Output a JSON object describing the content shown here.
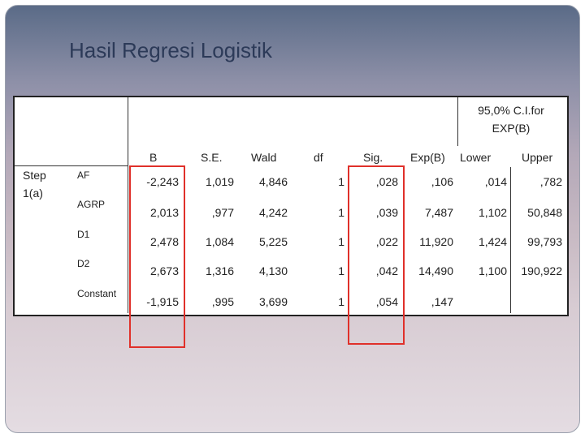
{
  "slide": {
    "title": "Hasil Regresi Logistik"
  },
  "table": {
    "group_header": "95,0% C.I.for EXP(B)",
    "group_header_line1": "95,0% C.I.for",
    "group_header_line2": "EXP(B)",
    "columns": [
      "B",
      "S.E.",
      "Wald",
      "df",
      "Sig.",
      "Exp(B)",
      "Lower",
      "Upper"
    ],
    "step_label_line1": "Step",
    "step_label_line2": "1(a)",
    "rows": [
      {
        "label": "AF",
        "B": "-2,243",
        "SE": "1,019",
        "Wald": "4,846",
        "df": "1",
        "Sig": ",028",
        "ExpB": ",106",
        "Lower": ",014",
        "Upper": ",782"
      },
      {
        "label": "AGRP",
        "B": "2,013",
        "SE": ",977",
        "Wald": "4,242",
        "df": "1",
        "Sig": ",039",
        "ExpB": "7,487",
        "Lower": "1,102",
        "Upper": "50,848"
      },
      {
        "label": "D1",
        "B": "2,478",
        "SE": "1,084",
        "Wald": "5,225",
        "df": "1",
        "Sig": ",022",
        "ExpB": "11,920",
        "Lower": "1,424",
        "Upper": "99,793"
      },
      {
        "label": "D2",
        "B": "2,673",
        "SE": "1,316",
        "Wald": "4,130",
        "df": "1",
        "Sig": ",042",
        "ExpB": "14,490",
        "Lower": "1,100",
        "Upper": "190,922"
      },
      {
        "label": "Constant",
        "B": "-1,915",
        "SE": ",995",
        "Wald": "3,699",
        "df": "1",
        "Sig": ",054",
        "ExpB": ",147",
        "Lower": "",
        "Upper": ""
      }
    ]
  },
  "highlights": {
    "color": "#e0302a",
    "columns": [
      "B",
      "Sig."
    ]
  }
}
